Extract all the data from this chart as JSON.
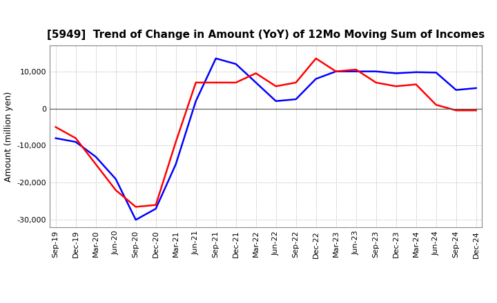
{
  "title": "[5949]  Trend of Change in Amount (YoY) of 12Mo Moving Sum of Incomes",
  "ylabel": "Amount (million yen)",
  "ylim": [
    -32000,
    17000
  ],
  "yticks": [
    -30000,
    -20000,
    -10000,
    0,
    10000
  ],
  "background_color": "#ffffff",
  "grid_color": "#aaaaaa",
  "ordinary_income_color": "#0000ff",
  "net_income_color": "#ff0000",
  "line_width": 1.8,
  "labels": [
    "Sep-19",
    "Dec-19",
    "Mar-20",
    "Jun-20",
    "Sep-20",
    "Dec-20",
    "Mar-21",
    "Jun-21",
    "Sep-21",
    "Dec-21",
    "Mar-22",
    "Jun-22",
    "Sep-22",
    "Dec-22",
    "Mar-23",
    "Jun-23",
    "Sep-23",
    "Dec-23",
    "Mar-24",
    "Jun-24",
    "Sep-24",
    "Dec-24"
  ],
  "ordinary_income": [
    -8000,
    -9000,
    -13000,
    -19000,
    -30000,
    -27000,
    -15000,
    2000,
    13500,
    12000,
    7000,
    2000,
    2500,
    8000,
    10000,
    10000,
    10000,
    9500,
    9800,
    9700,
    5000,
    5500
  ],
  "net_income": [
    -5000,
    -8000,
    -15000,
    -22000,
    -26500,
    -26000,
    -9000,
    7000,
    7000,
    7000,
    9500,
    6000,
    7000,
    13500,
    10000,
    10500,
    7000,
    6000,
    6500,
    1000,
    -500,
    -500
  ],
  "title_fontsize": 11,
  "ylabel_fontsize": 9,
  "tick_fontsize": 8,
  "legend_fontsize": 9
}
